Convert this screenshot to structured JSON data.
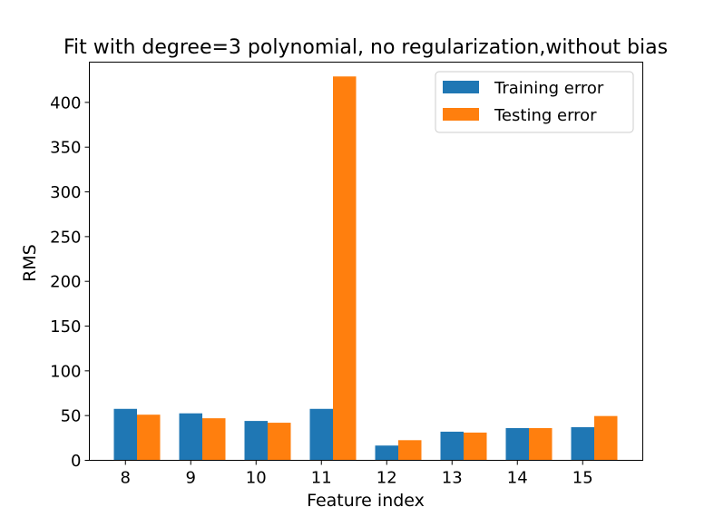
{
  "chart_data": {
    "type": "bar",
    "title": "Fit with degree=3 polynomial, no regularization,without bias",
    "xlabel": "Feature index",
    "ylabel": "RMS",
    "categories": [
      "8",
      "9",
      "10",
      "11",
      "12",
      "13",
      "14",
      "15"
    ],
    "series": [
      {
        "name": "Training error",
        "color": "#1f77b4",
        "values": [
          57.5,
          52.5,
          44,
          57.5,
          16.5,
          32,
          36,
          37
        ]
      },
      {
        "name": "Testing error",
        "color": "#ff7f0e",
        "values": [
          51,
          47,
          42,
          429,
          22.5,
          31,
          36,
          49.5
        ]
      }
    ],
    "ylim": [
      0,
      445
    ],
    "yticks": [
      0,
      50,
      100,
      150,
      200,
      250,
      300,
      350,
      400
    ],
    "legend_position": "top-right",
    "grid": false
  }
}
